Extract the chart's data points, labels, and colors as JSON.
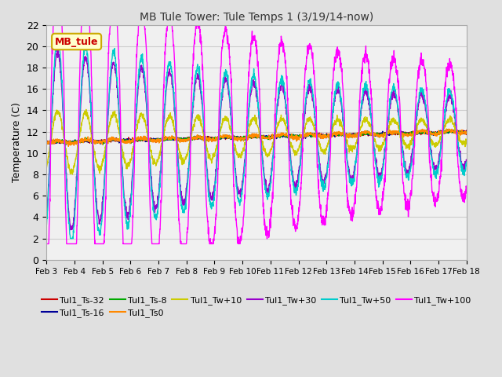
{
  "title": "MB Tule Tower: Tule Temps 1 (3/19/14-now)",
  "ylabel": "Temperature (C)",
  "ylim": [
    0,
    22
  ],
  "xlim": [
    0,
    15
  ],
  "xtick_labels": [
    "Feb 3",
    "Feb 4",
    "Feb 5",
    "Feb 6",
    "Feb 7",
    "Feb 8",
    "Feb 9",
    "Feb 10",
    "Feb 11",
    "Feb 12",
    "Feb 13",
    "Feb 14",
    "Feb 15",
    "Feb 16",
    "Feb 17",
    "Feb 18"
  ],
  "series": [
    {
      "label": "Tul1_Ts-32",
      "color": "#cc0000"
    },
    {
      "label": "Tul1_Ts-16",
      "color": "#000099"
    },
    {
      "label": "Tul1_Ts-8",
      "color": "#00aa00"
    },
    {
      "label": "Tul1_Ts0",
      "color": "#ff8800"
    },
    {
      "label": "Tul1_Tw+10",
      "color": "#cccc00"
    },
    {
      "label": "Tul1_Tw+30",
      "color": "#9900cc"
    },
    {
      "label": "Tul1_Tw+50",
      "color": "#00cccc"
    },
    {
      "label": "Tul1_Tw+100",
      "color": "#ff00ff"
    }
  ],
  "legend_label": "MB_tule",
  "legend_label_color": "#cc0000",
  "background_color": "#e0e0e0",
  "plot_background": "#f0f0f0"
}
